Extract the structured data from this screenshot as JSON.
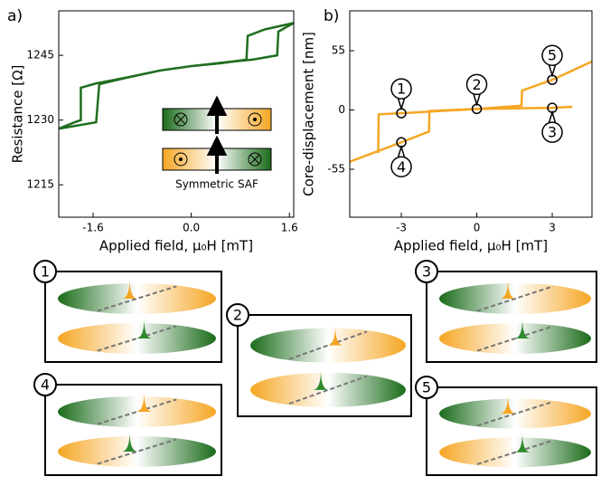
{
  "chart_data": [
    {
      "type": "line",
      "label": "a)",
      "ylabel": "Resistance [Ω]",
      "xlabel": "Applied field, μ₀H [mT]",
      "xlim": [
        -2.16,
        1.67
      ],
      "ylim": [
        1207.5,
        1255.3
      ],
      "xticks": [
        -1.6,
        {
          "value": 0,
          "label": "0.0"
        },
        1.6
      ],
      "yticks": [
        1215,
        1230,
        1245
      ],
      "inset_text": "Symmetric SAF",
      "series": [
        {
          "color": "#1f6e1f",
          "x": [
            -2.16,
            -1.9,
            -1.8,
            -1.8,
            -1.55,
            -1.0,
            -0.5,
            0,
            0.5,
            1.0,
            1.4,
            1.42,
            1.67
          ],
          "values": [
            1228,
            1229.5,
            1230,
            1237.5,
            1238.5,
            1240,
            1241.5,
            1242.5,
            1243.3,
            1244,
            1245,
            1250.5,
            1252.5
          ]
        },
        {
          "color": "#1f6e1f",
          "x": [
            1.67,
            1.2,
            0.92,
            0.9,
            0.5,
            0,
            -0.5,
            -1.0,
            -1.5,
            -1.55,
            -2.16
          ],
          "values": [
            1252.5,
            1251,
            1249.5,
            1244,
            1243.2,
            1242.5,
            1241.5,
            1240,
            1238.3,
            1229.5,
            1228
          ]
        }
      ]
    },
    {
      "type": "line",
      "label": "b)",
      "ylabel": "Core-displacement [nm]",
      "xlabel": "Applied field, μ₀H [mT]",
      "xlim": [
        -5.05,
        4.58
      ],
      "ylim": [
        -99.5,
        92
      ],
      "xticks": [
        -3,
        0,
        3
      ],
      "yticks": [
        -55,
        0,
        55
      ],
      "series": [
        {
          "color": "#f5a623",
          "x": [
            -5.05,
            -3,
            -1.9,
            -1.88,
            0,
            3,
            3.8
          ],
          "values": [
            -48,
            -30,
            -20,
            -1,
            1,
            2,
            3
          ]
        },
        {
          "color": "#f5a623",
          "x": [
            4.58,
            3,
            1.8,
            1.78,
            0,
            -3,
            -3.9,
            -3.92
          ],
          "values": [
            45,
            28,
            18,
            4,
            1,
            -3,
            -4,
            -40
          ]
        }
      ],
      "annotations": [
        {
          "text": "1",
          "x": -3,
          "y": -3,
          "dir": -1
        },
        {
          "text": "4",
          "x": -3,
          "y": -30,
          "dir": 1
        },
        {
          "text": "2",
          "x": 0,
          "y": 1,
          "dir": -1
        },
        {
          "text": "5",
          "x": 3,
          "y": 28,
          "dir": -1
        },
        {
          "text": "3",
          "x": 3,
          "y": 2,
          "dir": 1
        }
      ]
    }
  ],
  "panels": [
    "1",
    "2",
    "3",
    "4",
    "5"
  ]
}
